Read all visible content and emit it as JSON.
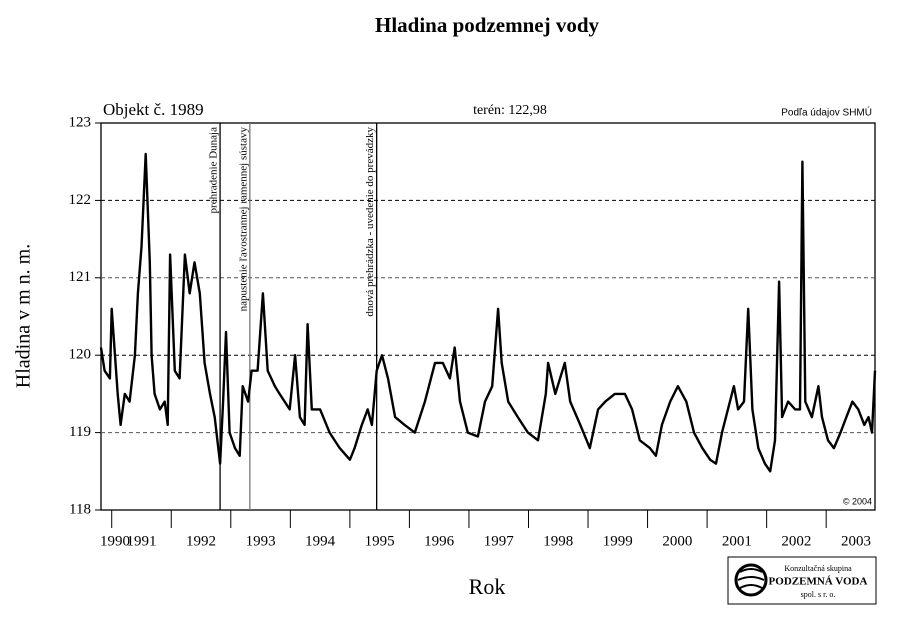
{
  "chart_data": {
    "type": "line",
    "title": "Hladina podzemnej vody",
    "object_label": "Objekt č. 1989",
    "terrain_label": "terén: 122,98",
    "source_label": "Podľa údajov SHMÚ",
    "copyright": "© 2004",
    "y_label": "Hladina v m n. m.",
    "x_label": "Rok",
    "logo": {
      "line1": "Konzultačná skupina",
      "line2": "PODZEMNÁ VODA",
      "line3": "spol. s r. o."
    },
    "color": "#000000",
    "grid": true,
    "xlim": [
      1990.82,
      2003.82
    ],
    "ylim": [
      118,
      123
    ],
    "xticks": [
      1990,
      1991,
      1992,
      1993,
      1994,
      1995,
      1996,
      1997,
      1998,
      1999,
      2000,
      2001,
      2002,
      2003
    ],
    "yticks": [
      118,
      119,
      120,
      121,
      122,
      123
    ],
    "events": [
      {
        "x": 1992.82,
        "label": "prehradenie Dunaja",
        "color": "#000000"
      },
      {
        "x": 1993.32,
        "label": "napustenie ľavostrannej ramennej sústavy",
        "color": "#777777"
      },
      {
        "x": 1995.45,
        "label": "dnová prehrádzka - uvedenie do prevádzky",
        "color": "#000000"
      }
    ],
    "x": [
      1990.82,
      1990.88,
      1990.97,
      1991.0,
      1991.1,
      1991.15,
      1991.22,
      1991.3,
      1991.39,
      1991.44,
      1991.5,
      1991.57,
      1991.64,
      1991.67,
      1991.72,
      1991.81,
      1991.89,
      1991.94,
      1991.98,
      1992.06,
      1992.14,
      1992.23,
      1992.31,
      1992.39,
      1992.48,
      1992.56,
      1992.65,
      1992.73,
      1992.82,
      1992.87,
      1992.92,
      1992.98,
      1993.07,
      1993.15,
      1993.2,
      1993.29,
      1993.35,
      1993.45,
      1993.54,
      1993.62,
      1993.74,
      1993.82,
      1993.99,
      1994.08,
      1994.16,
      1994.24,
      1994.29,
      1994.36,
      1994.5,
      1994.66,
      1994.83,
      1995.0,
      1995.08,
      1995.2,
      1995.3,
      1995.37,
      1995.45,
      1995.54,
      1995.64,
      1995.76,
      1995.92,
      1996.09,
      1996.26,
      1996.43,
      1996.56,
      1996.68,
      1996.76,
      1996.85,
      1996.98,
      1997.15,
      1997.27,
      1997.39,
      1997.49,
      1997.55,
      1997.66,
      1997.82,
      1997.99,
      1998.16,
      1998.29,
      1998.33,
      1998.45,
      1998.61,
      1998.7,
      1998.87,
      1999.03,
      1999.17,
      1999.29,
      1999.45,
      1999.62,
      1999.74,
      1999.87,
      2000.04,
      2000.14,
      2000.24,
      2000.38,
      2000.51,
      2000.65,
      2000.78,
      2000.92,
      2001.05,
      2001.15,
      2001.25,
      2001.35,
      2001.45,
      2001.52,
      2001.62,
      2001.69,
      2001.76,
      2001.86,
      2001.97,
      2002.06,
      2002.14,
      2002.21,
      2002.26,
      2002.36,
      2002.48,
      2002.56,
      2002.6,
      2002.65,
      2002.76,
      2002.87,
      2002.93,
      2003.03,
      2003.13,
      2003.24,
      2003.34,
      2003.44,
      2003.54,
      2003.64,
      2003.71,
      2003.77,
      2003.82
    ],
    "values": [
      120.1,
      119.8,
      119.7,
      120.6,
      119.5,
      119.1,
      119.5,
      119.4,
      120.0,
      120.8,
      121.4,
      122.6,
      121.2,
      120.0,
      119.5,
      119.3,
      119.4,
      119.1,
      121.3,
      119.8,
      119.7,
      121.3,
      120.8,
      121.2,
      120.8,
      119.9,
      119.5,
      119.2,
      118.6,
      119.4,
      120.3,
      119.0,
      118.8,
      118.7,
      119.6,
      119.4,
      119.8,
      119.8,
      120.8,
      119.8,
      119.6,
      119.5,
      119.3,
      120.0,
      119.2,
      119.1,
      120.4,
      119.3,
      119.3,
      119.0,
      118.8,
      118.65,
      118.8,
      119.1,
      119.3,
      119.1,
      119.8,
      120.0,
      119.7,
      119.2,
      119.1,
      119.0,
      119.4,
      119.9,
      119.9,
      119.7,
      120.1,
      119.4,
      119.0,
      118.95,
      119.4,
      119.6,
      120.6,
      119.9,
      119.4,
      119.2,
      119.0,
      118.9,
      119.5,
      119.9,
      119.5,
      119.9,
      119.4,
      119.1,
      118.8,
      119.3,
      119.4,
      119.5,
      119.5,
      119.3,
      118.9,
      118.8,
      118.7,
      119.1,
      119.4,
      119.6,
      119.4,
      119.0,
      118.8,
      118.65,
      118.6,
      119.0,
      119.3,
      119.6,
      119.3,
      119.4,
      120.6,
      119.3,
      118.8,
      118.6,
      118.5,
      118.9,
      120.95,
      119.2,
      119.4,
      119.3,
      119.3,
      122.5,
      119.4,
      119.2,
      119.6,
      119.2,
      118.9,
      118.8,
      119.0,
      119.2,
      119.4,
      119.3,
      119.1,
      119.2,
      119.0,
      119.8
    ]
  }
}
